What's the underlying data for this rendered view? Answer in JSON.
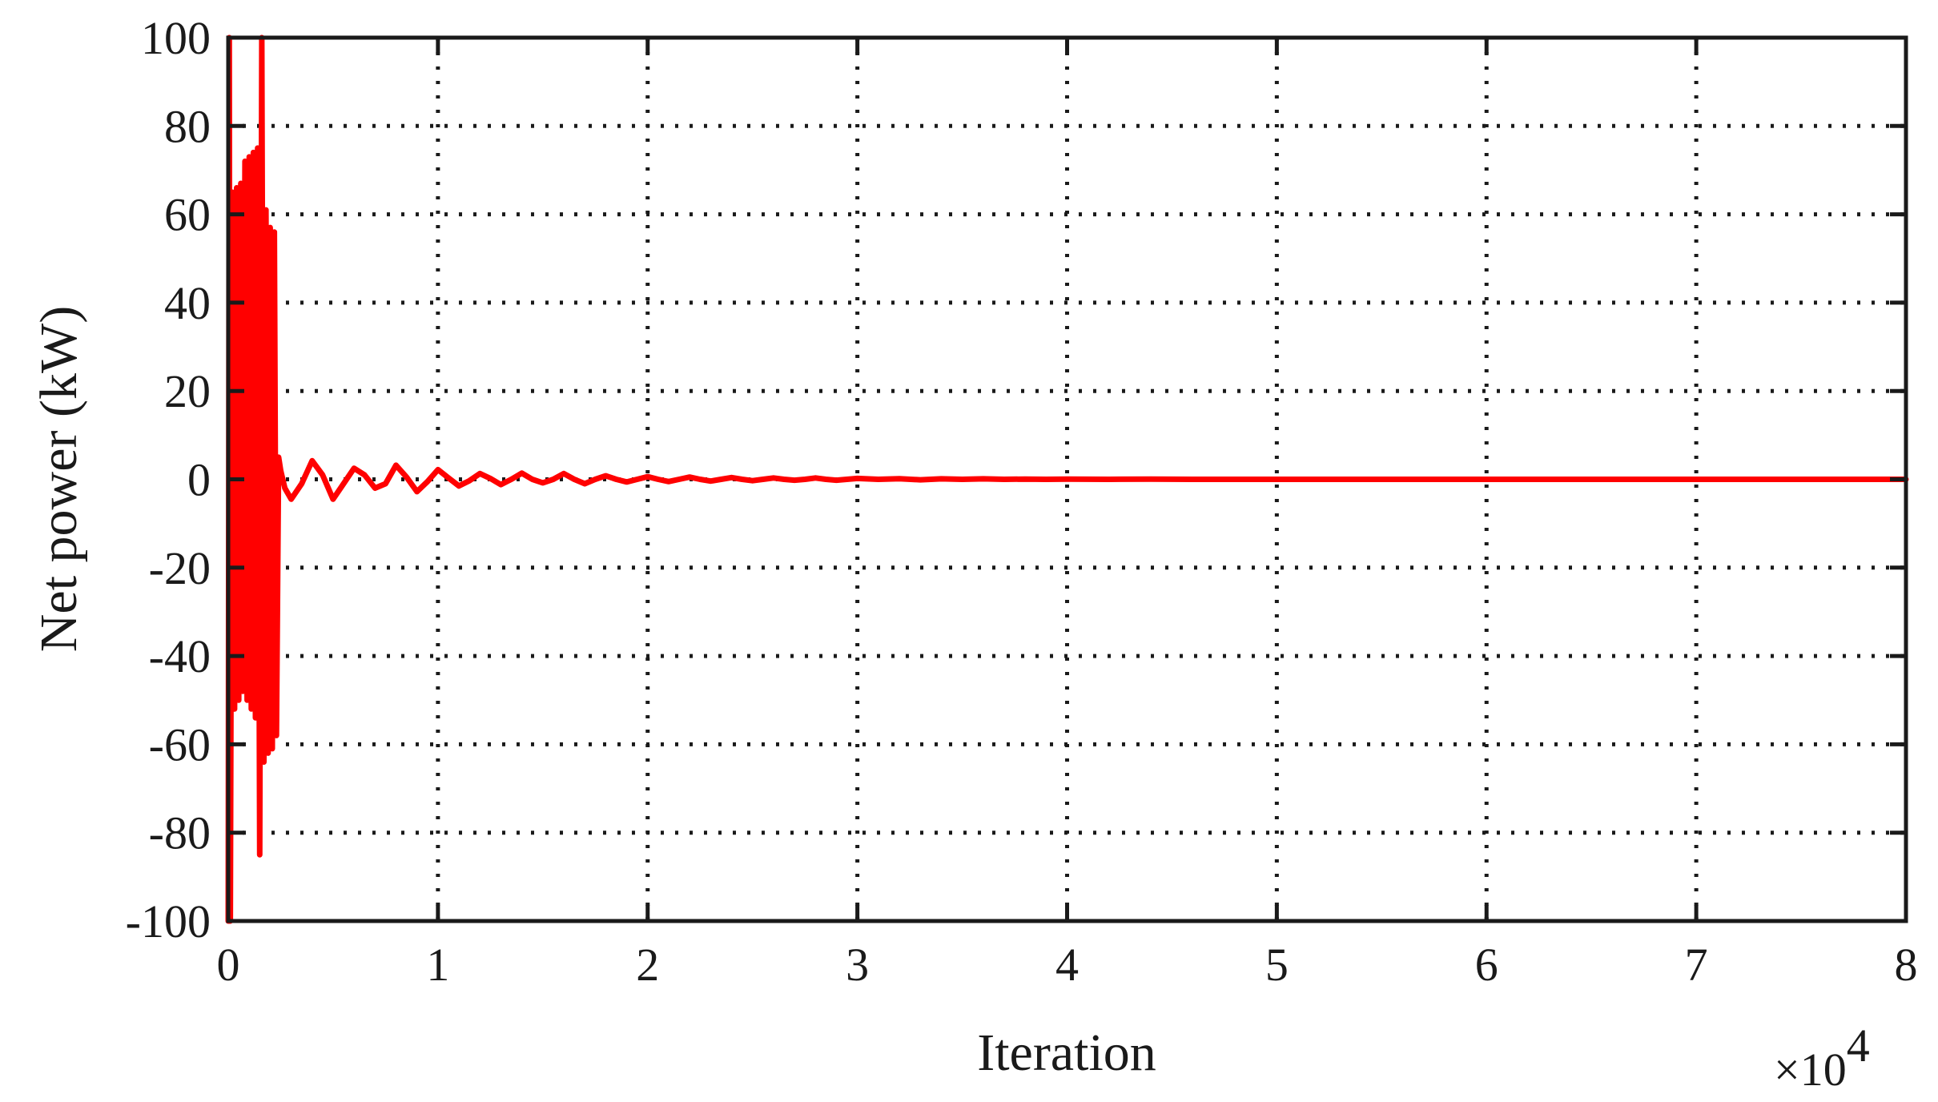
{
  "chart_data": {
    "type": "line",
    "title": "",
    "xlabel": "Iteration",
    "ylabel": "Net power (kW)",
    "x_exponent_label": "×10",
    "x_exponent_power": "4",
    "xlim": [
      0,
      8
    ],
    "ylim": [
      -100,
      100
    ],
    "x_ticks": [
      0,
      1,
      2,
      3,
      4,
      5,
      6,
      7,
      8
    ],
    "x_tick_labels": [
      "0",
      "1",
      "2",
      "3",
      "4",
      "5",
      "6",
      "7",
      "8"
    ],
    "y_ticks": [
      100,
      80,
      60,
      40,
      20,
      0,
      -20,
      -40,
      -60,
      -80,
      -100
    ],
    "y_tick_labels": [
      "100",
      "80",
      "60",
      "40",
      "20",
      "0",
      "-20",
      "-40",
      "-60",
      "-80",
      "-100"
    ],
    "grid": true,
    "colors": {
      "series": "#ff0000",
      "axes": "#1a1a1a"
    },
    "series": [
      {
        "x": [
          0,
          0.005,
          0.01,
          0.02,
          0.03,
          0.04,
          0.05,
          0.06,
          0.07,
          0.08,
          0.09,
          0.1,
          0.11,
          0.12,
          0.13,
          0.14,
          0.15,
          0.16,
          0.17,
          0.18,
          0.19,
          0.2,
          0.21,
          0.22,
          0.23,
          0.24,
          0.25,
          0.27,
          0.3,
          0.35,
          0.4,
          0.45,
          0.5,
          0.55,
          0.6,
          0.65,
          0.7,
          0.75,
          0.8,
          0.85,
          0.9,
          0.95,
          1.0,
          1.05,
          1.1,
          1.15,
          1.2,
          1.25,
          1.3,
          1.35,
          1.4,
          1.45,
          1.5,
          1.55,
          1.6,
          1.65,
          1.7,
          1.75,
          1.8,
          1.85,
          1.9,
          1.95,
          2.0,
          2.05,
          2.1,
          2.15,
          2.2,
          2.25,
          2.3,
          2.35,
          2.4,
          2.45,
          2.5,
          2.55,
          2.6,
          2.65,
          2.7,
          2.75,
          2.8,
          2.85,
          2.9,
          2.95,
          3.0,
          3.1,
          3.2,
          3.3,
          3.4,
          3.5,
          3.6,
          3.7,
          3.8,
          3.9,
          4.0,
          4.2,
          4.4,
          4.6,
          4.8,
          5.0,
          5.5,
          6.0,
          6.5,
          7.0,
          7.5,
          8.0
        ],
        "y": [
          -100,
          100,
          -100,
          65,
          -52,
          66,
          -50,
          67,
          -48,
          72,
          -50,
          73,
          -52,
          74,
          -54,
          75,
          -85,
          100,
          -64,
          61,
          -62,
          57,
          -61,
          56,
          -58,
          5,
          2,
          -2,
          -4.5,
          -1,
          4.2,
          1,
          -4.5,
          -1,
          2.5,
          1,
          -2,
          -1,
          3.2,
          0.5,
          -2.8,
          -0.5,
          2.2,
          0.3,
          -1.5,
          -0.3,
          1.3,
          0.2,
          -1.2,
          0,
          1.4,
          0,
          -0.8,
          0,
          1.3,
          0,
          -1,
          0,
          0.8,
          0,
          -0.6,
          0,
          0.6,
          0,
          -0.5,
          0,
          0.5,
          0,
          -0.4,
          0,
          0.4,
          0,
          -0.3,
          0,
          0.3,
          0,
          -0.2,
          0,
          0.3,
          0,
          -0.2,
          0,
          0.2,
          0,
          0.15,
          -0.1,
          0.1,
          0,
          0.1,
          0,
          0.05,
          0,
          0.05,
          0,
          0.05,
          0,
          0,
          0,
          0,
          0,
          0,
          0,
          0,
          0
        ]
      }
    ]
  }
}
